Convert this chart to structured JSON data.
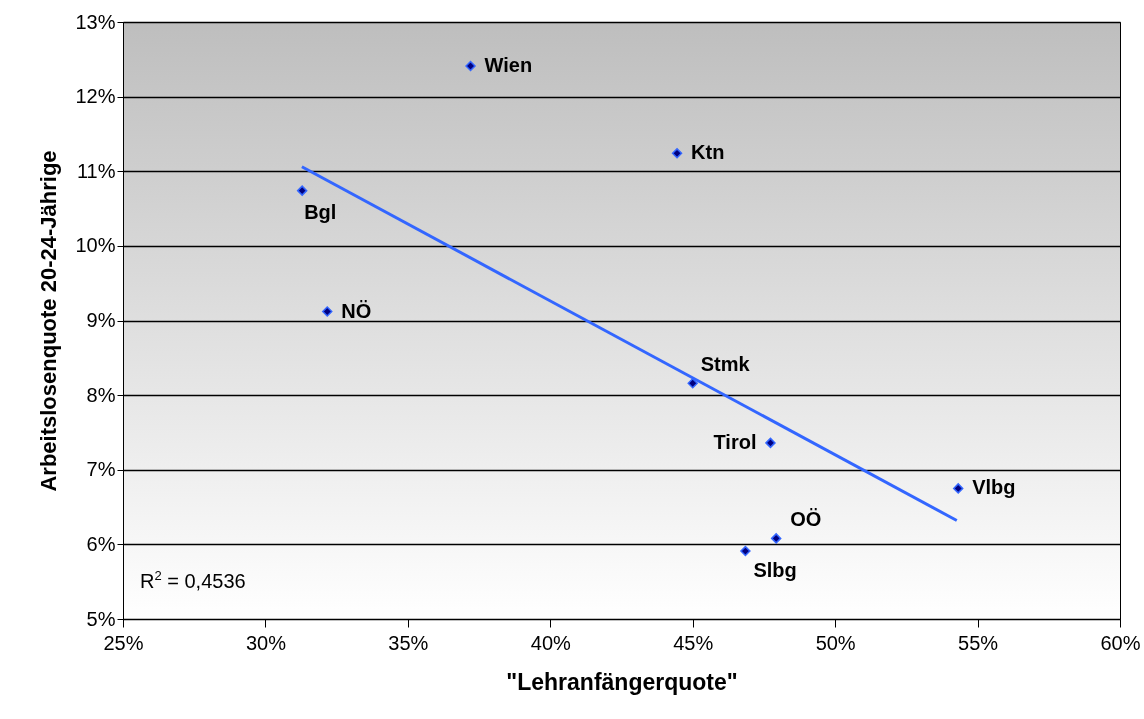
{
  "chart_data": {
    "type": "scatter",
    "xlabel": "\"Lehranfängerquote\"",
    "ylabel": "Arbeitslosenquote 20-24-Jährige",
    "xlim": [
      25,
      60
    ],
    "ylim": [
      5,
      13
    ],
    "xticks": [
      {
        "value": 25,
        "label": "25%"
      },
      {
        "value": 30,
        "label": "30%"
      },
      {
        "value": 35,
        "label": "35%"
      },
      {
        "value": 40,
        "label": "40%"
      },
      {
        "value": 45,
        "label": "45%"
      },
      {
        "value": 50,
        "label": "50%"
      },
      {
        "value": 55,
        "label": "55%"
      },
      {
        "value": 60,
        "label": "60%"
      }
    ],
    "yticks": [
      {
        "value": 5,
        "label": "5%"
      },
      {
        "value": 6,
        "label": "6%"
      },
      {
        "value": 7,
        "label": "7%"
      },
      {
        "value": 8,
        "label": "8%"
      },
      {
        "value": 9,
        "label": "9%"
      },
      {
        "value": 10,
        "label": "10%"
      },
      {
        "value": 11,
        "label": "11%"
      },
      {
        "value": 12,
        "label": "12%"
      },
      {
        "value": 13,
        "label": "13%"
      }
    ],
    "grid": "y",
    "annotations": [
      "R$^{2}$ = 0,4536"
    ],
    "series": [
      {
        "marker": "diamond",
        "color": "#000080",
        "x": [
          37.2,
          44.45,
          31.29,
          32.17,
          45.0,
          47.73,
          54.32,
          47.93,
          46.85
        ],
        "values": [
          12.41,
          11.24,
          10.74,
          9.12,
          8.16,
          7.36,
          6.75,
          6.08,
          5.91
        ],
        "value_labels": [
          "Wien",
          "Ktn",
          "Bgl",
          "NÖ",
          "Stmk",
          "Tirol",
          "Vlbg",
          "OÖ",
          "Slbg"
        ]
      },
      {
        "type": "line",
        "color": "#3366ff",
        "x": [
          31.28,
          54.27
        ],
        "values": [
          11.06,
          6.32
        ]
      }
    ]
  }
}
